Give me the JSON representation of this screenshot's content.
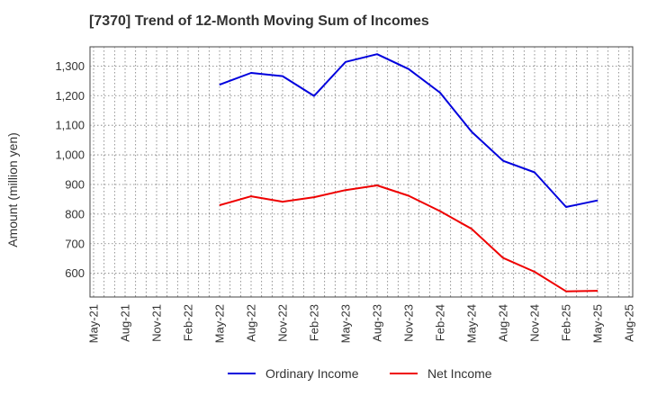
{
  "chart_data": {
    "type": "line",
    "title": "[7370]  Trend of 12-Month Moving Sum of Incomes",
    "xlabel": "",
    "ylabel": "Amount (million yen)",
    "ylim": [
      520,
      1365
    ],
    "yticks": [
      600,
      700,
      800,
      900,
      1000,
      1100,
      1200,
      1300
    ],
    "ytick_labels": [
      "600",
      "700",
      "800",
      "900",
      "1,000",
      "1,100",
      "1,200",
      "1,300"
    ],
    "x_tick_labels": [
      "May-21",
      "Aug-21",
      "Nov-21",
      "Feb-22",
      "May-22",
      "Aug-22",
      "Nov-22",
      "Feb-23",
      "May-23",
      "Aug-23",
      "Nov-23",
      "Feb-24",
      "May-24",
      "Aug-24",
      "Nov-24",
      "Feb-25",
      "May-25",
      "Aug-25"
    ],
    "grid": true,
    "legend_position": "bottom",
    "categories": [
      "May-22",
      "Aug-22",
      "Nov-22",
      "Feb-23",
      "May-23",
      "Aug-23",
      "Nov-23",
      "Feb-24",
      "May-24",
      "Aug-24",
      "Nov-24",
      "Feb-25",
      "May-25"
    ],
    "series": [
      {
        "name": "Ordinary Income",
        "color": "#0000dd",
        "values": [
          1237,
          1277,
          1266,
          1199,
          1314,
          1340,
          1290,
          1210,
          1078,
          980,
          941,
          824,
          846
        ]
      },
      {
        "name": "Net Income",
        "color": "#ee0000",
        "values": [
          830,
          860,
          842,
          857,
          881,
          897,
          862,
          810,
          750,
          652,
          605,
          539,
          541
        ]
      }
    ]
  }
}
